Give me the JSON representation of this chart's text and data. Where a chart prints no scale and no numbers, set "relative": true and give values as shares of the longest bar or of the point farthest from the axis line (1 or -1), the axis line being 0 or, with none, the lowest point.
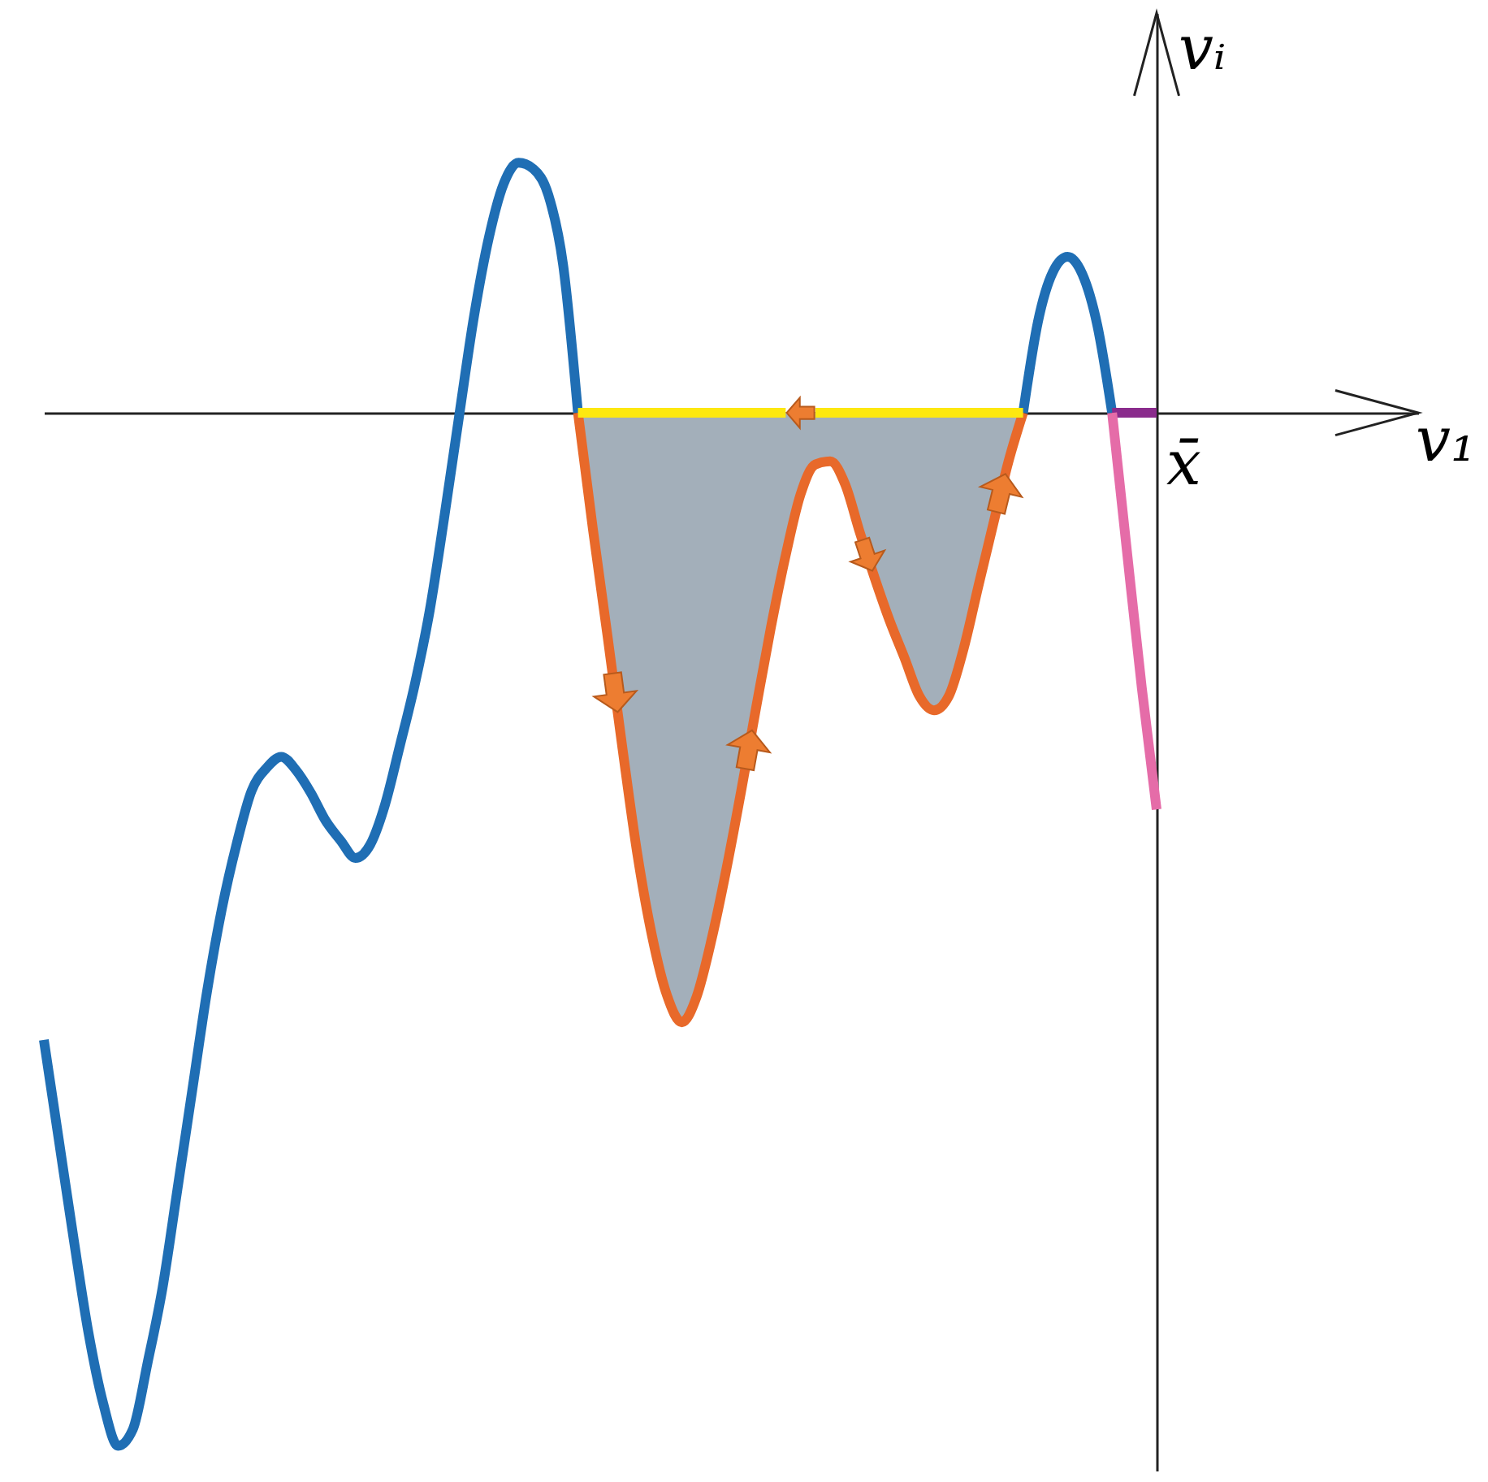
{
  "chart_data": {
    "type": "line",
    "relative": true,
    "xlabel": "v₁",
    "ylabel": "vᵢ",
    "annotations": [
      "x̄"
    ],
    "categories": [
      null,
      null,
      null,
      null,
      null,
      null,
      null,
      null,
      null,
      null,
      null,
      null,
      null,
      null,
      null,
      null,
      null,
      null,
      null,
      null,
      null,
      null,
      null,
      null,
      null,
      null,
      null,
      null,
      null,
      null,
      null,
      null,
      null,
      null,
      null,
      null,
      null,
      null,
      null,
      null,
      null,
      null,
      null,
      null,
      null,
      null,
      null,
      null,
      null,
      null,
      null,
      null,
      null,
      null,
      null,
      null,
      null,
      null,
      null,
      null,
      null,
      null,
      null,
      null,
      null,
      null,
      null,
      null,
      null,
      null,
      null,
      null,
      null,
      null,
      null,
      null
    ],
    "series": [
      {
        "color": "#1f6eb4",
        "values": [
          -0.607,
          -0.703,
          -0.799,
          -0.89,
          -0.959,
          -1,
          -0.984,
          -0.919,
          -0.847,
          -0.752,
          -0.656,
          -0.56,
          -0.48,
          -0.417,
          -0.366,
          -0.344,
          -0.333,
          -0.346,
          -0.368,
          -0.395,
          -0.414,
          -0.431,
          -0.418,
          -0.379,
          -0.322,
          -0.263,
          -0.192,
          -0.1,
          -0.002,
          0.094,
          0.17,
          0.222,
          0.242,
          0.236,
          0.211,
          0.143,
          0,
          null,
          null,
          null,
          null,
          null,
          null,
          null,
          null,
          null,
          null,
          null,
          null,
          null,
          null,
          null,
          null,
          null,
          null,
          null,
          null,
          null,
          null,
          null,
          null,
          null,
          null,
          null,
          null,
          null,
          0,
          0.088,
          0.136,
          0.151,
          0.134,
          0.085,
          0,
          null,
          null,
          null
        ]
      },
      {
        "color": "#e8692a",
        "values": [
          null,
          null,
          null,
          null,
          null,
          null,
          null,
          null,
          null,
          null,
          null,
          null,
          null,
          null,
          null,
          null,
          null,
          null,
          null,
          null,
          null,
          null,
          null,
          null,
          null,
          null,
          null,
          null,
          null,
          null,
          null,
          null,
          null,
          null,
          null,
          null,
          0,
          -0.112,
          -0.217,
          -0.325,
          -0.427,
          -0.507,
          -0.564,
          -0.59,
          -0.565,
          -0.51,
          -0.442,
          -0.366,
          -0.286,
          -0.208,
          -0.138,
          -0.079,
          -0.05,
          -0.047,
          -0.069,
          -0.116,
          -0.16,
          -0.201,
          -0.237,
          -0.274,
          -0.288,
          -0.274,
          -0.228,
          -0.167,
          -0.107,
          -0.048,
          0,
          null,
          null,
          null,
          null,
          null,
          null,
          null,
          null,
          null
        ],
        "lower": [
          null,
          null,
          null,
          null,
          null,
          null,
          null,
          null,
          null,
          null,
          null,
          null,
          null,
          null,
          null,
          null,
          null,
          null,
          null,
          null,
          null,
          null,
          null,
          null,
          null,
          null,
          null,
          null,
          null,
          null,
          null,
          null,
          null,
          null,
          null,
          null,
          0,
          -0.112,
          -0.217,
          -0.325,
          -0.427,
          -0.507,
          -0.564,
          -0.59,
          -0.565,
          -0.51,
          -0.442,
          -0.366,
          -0.286,
          -0.208,
          -0.138,
          null,
          -0.05,
          -0.047,
          -0.069,
          -0.116,
          -0.16,
          -0.201,
          -0.237,
          -0.274,
          -0.288,
          -0.274,
          -0.228,
          -0.167,
          -0.107,
          -0.048,
          0,
          null,
          null,
          null,
          null,
          null,
          null,
          null,
          null,
          null
        ],
        "upper": [
          null,
          null,
          null,
          null,
          null,
          null,
          null,
          null,
          null,
          null,
          null,
          null,
          null,
          null,
          null,
          null,
          null,
          null,
          null,
          null,
          null,
          null,
          null,
          null,
          null,
          null,
          null,
          null,
          null,
          null,
          null,
          null,
          null,
          null,
          null,
          null,
          0,
          0,
          0,
          0,
          0,
          0,
          0,
          0,
          0,
          0,
          0,
          0,
          0,
          0,
          0,
          null,
          0,
          0,
          0,
          0,
          0,
          0,
          0,
          0,
          0,
          0,
          0,
          0,
          0,
          0,
          0,
          null,
          null,
          null,
          null,
          null,
          null,
          null,
          null,
          null
        ]
      },
      {
        "color": "#fde80f",
        "values": [
          null,
          null,
          null,
          null,
          null,
          null,
          null,
          null,
          null,
          null,
          null,
          null,
          null,
          null,
          null,
          null,
          null,
          null,
          null,
          null,
          null,
          null,
          null,
          null,
          null,
          null,
          null,
          null,
          null,
          null,
          null,
          null,
          null,
          null,
          null,
          null,
          0,
          0,
          0,
          0,
          0,
          0,
          0,
          0,
          0,
          0,
          0,
          0,
          0,
          0,
          0,
          null,
          0,
          0,
          0,
          0,
          0,
          0,
          0,
          0,
          0,
          0,
          0,
          0,
          0,
          0,
          0,
          null,
          null,
          null,
          null,
          null,
          null,
          null,
          null,
          null
        ]
      },
      {
        "color": "#8a2b8c",
        "values": [
          null,
          null,
          null,
          null,
          null,
          null,
          null,
          null,
          null,
          null,
          null,
          null,
          null,
          null,
          null,
          null,
          null,
          null,
          null,
          null,
          null,
          null,
          null,
          null,
          null,
          null,
          null,
          null,
          null,
          null,
          null,
          null,
          null,
          null,
          null,
          null,
          null,
          null,
          null,
          null,
          null,
          null,
          null,
          null,
          null,
          null,
          null,
          null,
          null,
          null,
          null,
          null,
          null,
          null,
          null,
          null,
          null,
          null,
          null,
          null,
          null,
          null,
          null,
          null,
          null,
          null,
          null,
          null,
          null,
          null,
          null,
          null,
          0,
          0,
          0,
          0
        ]
      },
      {
        "color": "#e56ca8",
        "values": [
          null,
          null,
          null,
          null,
          null,
          null,
          null,
          null,
          null,
          null,
          null,
          null,
          null,
          null,
          null,
          null,
          null,
          null,
          null,
          null,
          null,
          null,
          null,
          null,
          null,
          null,
          null,
          null,
          null,
          null,
          null,
          null,
          null,
          null,
          null,
          null,
          null,
          null,
          null,
          null,
          null,
          null,
          null,
          null,
          null,
          null,
          null,
          null,
          null,
          null,
          null,
          null,
          null,
          null,
          null,
          null,
          null,
          null,
          null,
          null,
          null,
          null,
          null,
          null,
          null,
          null,
          null,
          null,
          null,
          null,
          null,
          null,
          0,
          -0.134,
          -0.266,
          -0.384
        ]
      }
    ]
  }
}
